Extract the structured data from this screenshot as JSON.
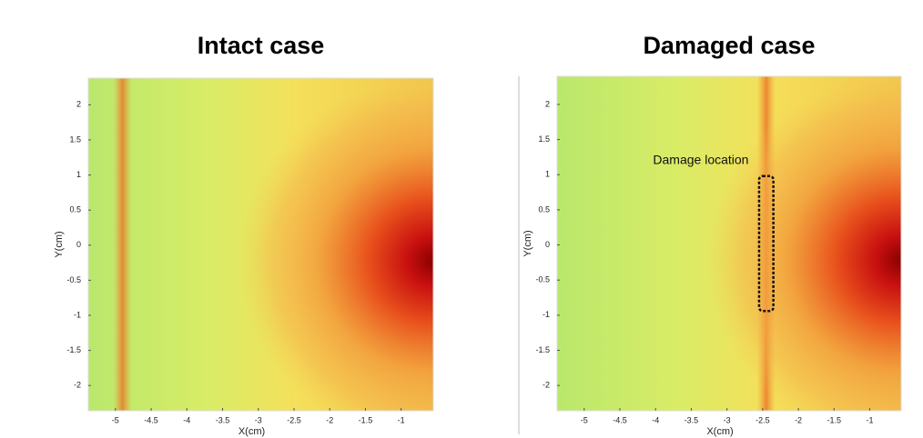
{
  "chart_data": [
    {
      "type": "heatmap",
      "title": "Intact case",
      "xlabel": "X(cm)",
      "ylabel": "Y(cm)",
      "xlim": [
        -5.38,
        -0.55
      ],
      "ylim": [
        -2.36,
        2.38
      ],
      "xticks": [
        -5,
        -4.5,
        -4,
        -3.5,
        -3,
        -2.5,
        -2,
        -1.5,
        -1
      ],
      "yticks": [
        -2,
        -1.5,
        -1,
        -0.5,
        0,
        0.5,
        1,
        1.5,
        2
      ],
      "stripe_x": -4.9
    },
    {
      "type": "heatmap",
      "title": "Damaged case",
      "xlabel": "X(cm)",
      "ylabel": "Y(cm)",
      "xlim": [
        -5.38,
        -0.56
      ],
      "ylim": [
        -2.36,
        2.4
      ],
      "xticks": [
        -5,
        -4.5,
        -4,
        -3.5,
        -3,
        -2.5,
        -2,
        -1.5,
        -1
      ],
      "yticks": [
        -2,
        -1.5,
        -1,
        -0.5,
        0,
        0.5,
        1,
        1.5,
        2
      ],
      "stripe_x": -2.45,
      "annotation": {
        "text": "Damage location",
        "x": [
          -2.55,
          -2.35
        ],
        "y": [
          -0.94,
          0.98
        ]
      }
    }
  ]
}
